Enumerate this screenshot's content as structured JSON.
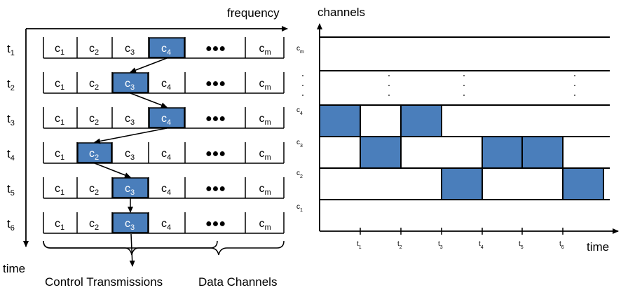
{
  "labels": {
    "frequency": "frequency",
    "time": "time",
    "channels": "channels",
    "time_right": "time",
    "control": "Control Transmissions",
    "data": "Data Channels"
  },
  "rows": [
    {
      "t": "t",
      "ts": "1",
      "active": 3
    },
    {
      "t": "t",
      "ts": "2",
      "active": 2
    },
    {
      "t": "t",
      "ts": "3",
      "active": 3
    },
    {
      "t": "t",
      "ts": "4",
      "active": 1
    },
    {
      "t": "t",
      "ts": "5",
      "active": 2
    },
    {
      "t": "t",
      "ts": "6",
      "active": 2
    }
  ],
  "cells": [
    {
      "c": "c",
      "s": "1"
    },
    {
      "c": "c",
      "s": "2"
    },
    {
      "c": "c",
      "s": "3"
    },
    {
      "c": "c",
      "s": "4"
    },
    {
      "c": "●●●",
      "s": ""
    },
    {
      "c": "c",
      "s": "m"
    }
  ],
  "right_channels": [
    {
      "c": "c",
      "s": "m"
    },
    {
      "c": "c",
      "s": "4"
    },
    {
      "c": "c",
      "s": "3"
    },
    {
      "c": "c",
      "s": "2"
    },
    {
      "c": "c",
      "s": "1"
    }
  ],
  "right_ticks": [
    {
      "t": "t",
      "s": "1"
    },
    {
      "t": "t",
      "s": "2"
    },
    {
      "t": "t",
      "s": "3"
    },
    {
      "t": "t",
      "s": "4"
    },
    {
      "t": "t",
      "s": "5"
    },
    {
      "t": "t",
      "s": "6"
    }
  ],
  "schedule": [
    {
      "slot": 0,
      "channel": "4"
    },
    {
      "slot": 1,
      "channel": "3"
    },
    {
      "slot": 2,
      "channel": "4"
    },
    {
      "slot": 3,
      "channel": "2"
    },
    {
      "slot": 4,
      "channel": "3"
    },
    {
      "slot": 5,
      "channel": "3"
    },
    {
      "slot": 6,
      "channel": "2"
    }
  ],
  "colors": {
    "fill": "#4a7ebb",
    "stroke": "#000000",
    "active_text": "#ffffff"
  }
}
